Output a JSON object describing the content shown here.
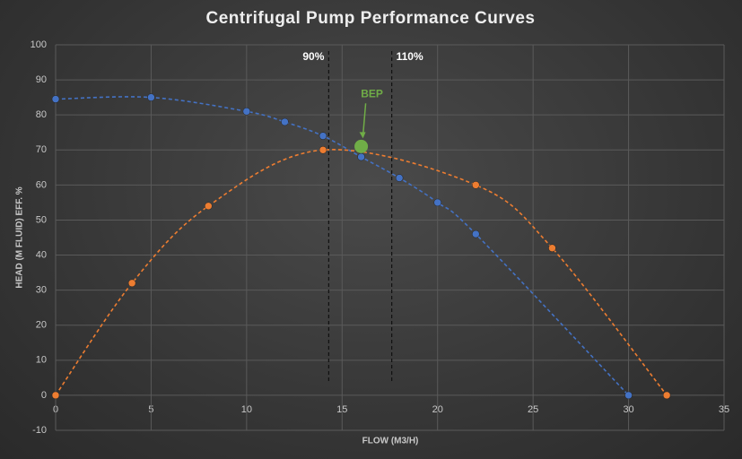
{
  "chart_data": {
    "type": "scatter",
    "title": "Centrifugal Pump Performance Curves",
    "x_label": "FLOW (M3/H)",
    "y_label": "HEAD (M FLUID) EFF. %",
    "xlim": [
      0,
      35
    ],
    "xticks": [
      0,
      5,
      10,
      15,
      20,
      25,
      30,
      35
    ],
    "ylim": [
      -10,
      100
    ],
    "yticks": [
      -10,
      0,
      10,
      20,
      30,
      40,
      50,
      60,
      70,
      80,
      90,
      100
    ],
    "grid": true,
    "series": [
      {
        "color": "#4472c4",
        "x": [
          0,
          5,
          10,
          12,
          14,
          16,
          18,
          20,
          22,
          30
        ],
        "values": [
          84.5,
          85,
          81,
          78,
          74,
          68,
          62,
          55,
          46,
          0
        ]
      },
      {
        "color": "#ed7d31",
        "x": [
          0,
          4,
          8,
          14,
          22,
          26,
          32
        ],
        "values": [
          0,
          32,
          54,
          70,
          60,
          42,
          0
        ]
      }
    ],
    "annotations": [
      {
        "label": "90%",
        "x": 14.3
      },
      {
        "label": "110%",
        "x": 17.6
      }
    ],
    "highlight": {
      "label": "BEP",
      "x": 16,
      "y": 71,
      "color": "#70ad47"
    }
  }
}
